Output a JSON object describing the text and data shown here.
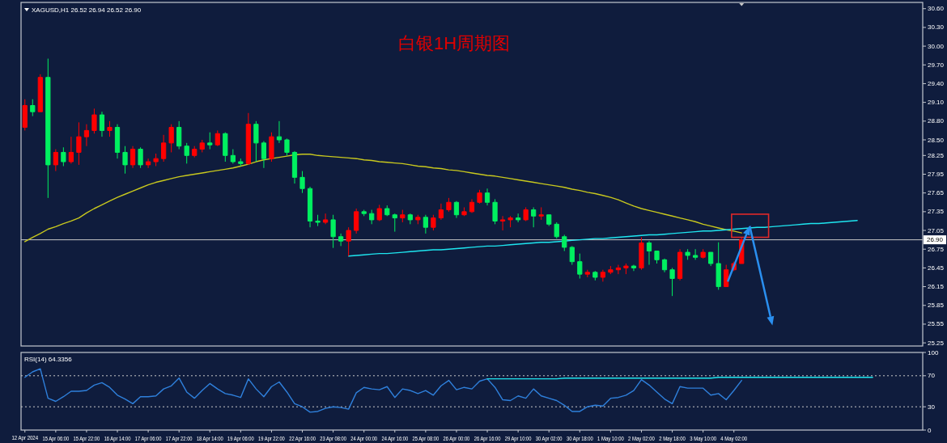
{
  "chart_data": [
    {
      "type": "candlestick",
      "title": "白银1H周期图",
      "annotations": [
        "XAGUSD,H1 26.52 26.94 26.52 26.90"
      ],
      "categories": [
        null,
        null,
        null,
        null,
        null,
        null,
        null,
        null,
        null,
        null,
        null,
        null,
        null,
        null,
        null,
        null,
        null,
        null,
        null,
        null,
        null,
        null,
        null,
        null,
        null,
        null,
        null,
        null,
        null,
        null,
        null,
        null,
        null,
        null,
        null,
        null,
        null,
        null,
        null,
        null,
        null,
        null,
        null,
        null,
        null,
        null,
        null,
        null,
        null,
        null,
        null,
        null,
        null,
        null,
        null,
        null,
        null,
        null,
        null,
        null,
        null,
        null,
        null,
        null,
        null,
        null,
        null,
        null,
        null,
        null,
        null,
        null,
        null,
        null,
        null,
        null,
        null,
        null,
        null,
        null,
        null,
        null,
        null,
        null,
        null,
        null,
        null,
        null,
        null,
        null,
        null,
        null,
        null,
        null,
        null,
        null,
        null,
        null,
        null,
        null,
        null,
        null,
        null,
        null,
        null,
        null,
        null,
        null,
        null,
        null,
        null,
        null,
        null,
        null,
        null,
        null,
        null
      ],
      "ylim": [
        25.2,
        30.7
      ],
      "yticks": [
        {
          "value": 30.6,
          "label": "30.60"
        },
        {
          "value": 30.3,
          "label": "30.30"
        },
        {
          "value": 30,
          "label": "30.00"
        },
        {
          "value": 29.7,
          "label": "29.70"
        },
        {
          "value": 29.4,
          "label": "29.40"
        },
        {
          "value": 29.1,
          "label": "29.10"
        },
        {
          "value": 28.8,
          "label": "28.80"
        },
        {
          "value": 28.5,
          "label": "28.50"
        },
        {
          "value": 28.25,
          "label": "28.25"
        },
        {
          "value": 27.95,
          "label": "27.95"
        },
        {
          "value": 27.65,
          "label": "27.65"
        },
        {
          "value": 27.35,
          "label": "27.35"
        },
        {
          "value": 27.05,
          "label": "27.05"
        },
        {
          "value": 26.75,
          "label": "26.75"
        },
        {
          "value": 26.45,
          "label": "26.45"
        },
        {
          "value": 26.15,
          "label": "26.15"
        },
        {
          "value": 25.85,
          "label": "25.85"
        },
        {
          "value": 25.55,
          "label": "25.55"
        },
        {
          "value": 25.25,
          "label": "25.25"
        }
      ],
      "tick_labels": "y",
      "ref_lines": [
        {
          "axis": "y",
          "value": 26.9,
          "label": "26.90",
          "color": "#c8c8c8"
        }
      ],
      "series": [
        {
          "ohlc": [
            [
              28.7,
              29.15,
              28.65,
              29.05
            ],
            [
              29.05,
              29.15,
              28.88,
              28.95
            ],
            [
              28.95,
              29.55,
              28.95,
              29.5
            ],
            [
              29.5,
              29.8,
              27.57,
              28.1
            ],
            [
              28.1,
              28.35,
              28.0,
              28.3
            ],
            [
              28.3,
              28.38,
              28.08,
              28.15
            ],
            [
              28.15,
              28.55,
              28.12,
              28.3
            ],
            [
              28.3,
              28.78,
              28.1,
              28.55
            ],
            [
              28.55,
              28.75,
              28.4,
              28.65
            ],
            [
              28.65,
              29.0,
              28.6,
              28.9
            ],
            [
              28.9,
              28.95,
              28.55,
              28.65
            ],
            [
              28.65,
              28.8,
              28.55,
              28.7
            ],
            [
              28.7,
              28.75,
              28.2,
              28.3
            ],
            [
              28.3,
              28.4,
              27.96,
              28.1
            ],
            [
              28.1,
              28.4,
              28.05,
              28.35
            ],
            [
              28.35,
              28.38,
              28.05,
              28.1
            ],
            [
              28.1,
              28.2,
              28.05,
              28.15
            ],
            [
              28.15,
              28.28,
              28.08,
              28.2
            ],
            [
              28.2,
              28.58,
              28.15,
              28.45
            ],
            [
              28.45,
              28.75,
              28.3,
              28.7
            ],
            [
              28.7,
              28.8,
              28.35,
              28.4
            ],
            [
              28.4,
              28.45,
              28.12,
              28.25
            ],
            [
              28.25,
              28.4,
              28.22,
              28.35
            ],
            [
              28.35,
              28.5,
              28.3,
              28.45
            ],
            [
              28.45,
              28.62,
              28.35,
              28.42
            ],
            [
              28.42,
              28.65,
              28.4,
              28.6
            ],
            [
              28.6,
              28.62,
              28.15,
              28.25
            ],
            [
              28.25,
              28.35,
              28.12,
              28.15
            ],
            [
              28.15,
              28.2,
              28.08,
              28.12
            ],
            [
              28.12,
              28.93,
              28.1,
              28.75
            ],
            [
              28.75,
              28.8,
              28.15,
              28.45
            ],
            [
              28.45,
              28.48,
              28.05,
              28.2
            ],
            [
              28.2,
              28.62,
              28.15,
              28.55
            ],
            [
              28.55,
              28.8,
              28.45,
              28.5
            ],
            [
              28.5,
              28.52,
              28.25,
              28.3
            ],
            [
              28.3,
              28.32,
              27.8,
              27.9
            ],
            [
              27.9,
              28.0,
              27.65,
              27.72
            ],
            [
              27.72,
              27.75,
              27.1,
              27.2
            ],
            [
              27.2,
              27.3,
              27.12,
              27.18
            ],
            [
              27.18,
              27.32,
              27.15,
              27.22
            ],
            [
              27.22,
              27.3,
              26.77,
              26.95
            ],
            [
              26.95,
              27.0,
              26.8,
              26.88
            ],
            [
              26.88,
              27.1,
              26.64,
              27.05
            ],
            [
              27.05,
              27.4,
              27.0,
              27.35
            ],
            [
              27.35,
              27.38,
              27.28,
              27.32
            ],
            [
              27.32,
              27.38,
              27.15,
              27.22
            ],
            [
              27.22,
              27.46,
              27.2,
              27.4
            ],
            [
              27.4,
              27.45,
              27.28,
              27.3
            ],
            [
              27.3,
              27.32,
              27.03,
              27.25
            ],
            [
              27.25,
              27.38,
              27.18,
              27.3
            ],
            [
              27.3,
              27.32,
              27.15,
              27.22
            ],
            [
              27.22,
              27.3,
              27.15,
              27.26
            ],
            [
              27.26,
              27.3,
              27.0,
              27.1
            ],
            [
              27.1,
              27.3,
              27.05,
              27.25
            ],
            [
              27.25,
              27.48,
              27.22,
              27.38
            ],
            [
              27.38,
              27.57,
              27.35,
              27.5
            ],
            [
              27.5,
              27.52,
              27.25,
              27.3
            ],
            [
              27.3,
              27.42,
              27.28,
              27.35
            ],
            [
              27.35,
              27.55,
              27.33,
              27.5
            ],
            [
              27.5,
              27.7,
              27.48,
              27.65
            ],
            [
              27.65,
              27.72,
              27.45,
              27.5
            ],
            [
              27.5,
              27.55,
              27.15,
              27.2
            ],
            [
              27.2,
              27.28,
              27.05,
              27.22
            ],
            [
              27.22,
              27.28,
              27.1,
              27.25
            ],
            [
              27.25,
              27.32,
              27.18,
              27.22
            ],
            [
              27.22,
              27.42,
              27.2,
              27.38
            ],
            [
              27.38,
              27.42,
              27.1,
              27.28
            ],
            [
              27.28,
              27.42,
              27.22,
              27.3
            ],
            [
              27.3,
              27.3,
              27.12,
              27.15
            ],
            [
              27.15,
              27.18,
              26.92,
              26.95
            ],
            [
              26.95,
              26.98,
              26.72,
              26.78
            ],
            [
              26.78,
              26.8,
              26.5,
              26.55
            ],
            [
              26.55,
              26.68,
              26.28,
              26.35
            ],
            [
              26.35,
              26.42,
              26.3,
              26.38
            ],
            [
              26.38,
              26.4,
              26.25,
              26.3
            ],
            [
              26.3,
              26.42,
              26.23,
              26.38
            ],
            [
              26.38,
              26.48,
              26.35,
              26.42
            ],
            [
              26.42,
              26.5,
              26.35,
              26.45
            ],
            [
              26.45,
              26.52,
              26.35,
              26.48
            ],
            [
              26.48,
              26.5,
              26.4,
              26.45
            ],
            [
              26.45,
              26.94,
              26.42,
              26.85
            ],
            [
              26.85,
              26.88,
              26.5,
              26.72
            ],
            [
              26.72,
              26.72,
              26.52,
              26.58
            ],
            [
              26.58,
              26.6,
              26.38,
              26.42
            ],
            [
              26.42,
              26.45,
              26.0,
              26.28
            ],
            [
              26.28,
              26.75,
              26.25,
              26.7
            ],
            [
              26.7,
              26.75,
              26.58,
              26.65
            ],
            [
              26.65,
              26.75,
              26.58,
              26.62
            ],
            [
              26.62,
              26.75,
              26.6,
              26.7
            ],
            [
              26.7,
              26.7,
              26.48,
              26.52
            ],
            [
              26.52,
              26.86,
              26.1,
              26.15
            ],
            [
              26.15,
              26.5,
              26.15,
              26.42
            ],
            [
              26.42,
              26.55,
              26.4,
              26.52
            ],
            [
              26.52,
              26.94,
              26.52,
              26.9
            ],
            null,
            null,
            null,
            null,
            null,
            null,
            null,
            null,
            null,
            null,
            null,
            null,
            null,
            null,
            null,
            null,
            null,
            null,
            null,
            null,
            null,
            null,
            null
          ],
          "colors": [
            "#ff0000",
            "#00f060",
            "#ff0000",
            "#00f060",
            "#ff0000",
            "#00f060",
            "#ff0000",
            "#ff0000",
            "#ff0000",
            "#ff0000",
            "#00f060",
            "#ff0000",
            "#00f060",
            "#00f060",
            "#ff0000",
            "#00f060",
            "#ff0000",
            "#ff0000",
            "#ff0000",
            "#ff0000",
            "#00f060",
            "#00f060",
            "#ff0000",
            "#ff0000",
            "#00f060",
            "#ff0000",
            "#00f060",
            "#00f060",
            "#00f060",
            "#ff0000",
            "#00f060",
            "#00f060",
            "#ff0000",
            "#00f060",
            "#00f060",
            "#00f060",
            "#00f060",
            "#00f060",
            "#00f060",
            "#ff0000",
            "#00f060",
            "#00f060",
            "#ff0000",
            "#ff0000",
            "#00f060",
            "#00f060",
            "#ff0000",
            "#00f060",
            "#00f060",
            "#ff0000",
            "#00f060",
            "#ff0000",
            "#00f060",
            "#ff0000",
            "#ff0000",
            "#ff0000",
            "#00f060",
            "#ff0000",
            "#ff0000",
            "#ff0000",
            "#00f060",
            "#00f060",
            "#ff0000",
            "#ff0000",
            "#00f060",
            "#ff0000",
            "#00f060",
            "#ff0000",
            "#00f060",
            "#00f060",
            "#00f060",
            "#00f060",
            "#00f060",
            "#ff0000",
            "#00f060",
            "#ff0000",
            "#ff0000",
            "#ff0000",
            "#ff0000",
            "#00f060",
            "#ff0000",
            "#00f060",
            "#00f060",
            "#00f060",
            "#00f060",
            "#ff0000",
            "#00f060",
            "#00f060",
            "#ff0000",
            "#00f060",
            "#00f060",
            "#ff0000",
            "#ff0000",
            "#ff0000",
            null,
            null,
            null,
            null,
            null,
            null,
            null,
            null,
            null,
            null,
            null,
            null,
            null,
            null,
            null,
            null,
            null,
            null,
            null,
            null,
            null,
            null,
            null
          ]
        },
        {
          "type": "line",
          "color": "#c8c81e",
          "values": [
            26.87,
            26.94,
            27.0,
            27.07,
            27.11,
            27.16,
            27.2,
            27.25,
            27.33,
            27.4,
            27.46,
            27.52,
            27.58,
            27.63,
            27.68,
            27.73,
            27.78,
            27.82,
            27.85,
            27.88,
            27.91,
            27.93,
            27.95,
            27.97,
            27.99,
            28.01,
            28.03,
            28.05,
            28.08,
            28.11,
            28.15,
            28.18,
            28.2,
            28.22,
            28.24,
            28.26,
            28.27,
            28.27,
            28.25,
            28.24,
            28.23,
            28.22,
            28.21,
            28.2,
            28.18,
            28.17,
            28.15,
            28.14,
            28.13,
            28.12,
            28.1,
            28.08,
            28.07,
            28.05,
            28.04,
            28.02,
            28.01,
            27.99,
            27.97,
            27.95,
            27.93,
            27.92,
            27.9,
            27.88,
            27.86,
            27.84,
            27.82,
            27.8,
            27.78,
            27.76,
            27.74,
            27.71,
            27.69,
            27.66,
            27.64,
            27.61,
            27.58,
            27.54,
            27.49,
            27.44,
            27.4,
            27.37,
            27.34,
            27.31,
            27.28,
            27.25,
            27.22,
            27.19,
            27.15,
            27.12,
            27.09,
            27.06,
            27.04,
            27.01,
            null,
            null,
            null,
            null,
            null,
            null,
            null,
            null,
            null,
            null,
            null,
            null,
            null,
            null,
            null,
            null,
            null,
            null,
            null,
            null,
            null,
            null,
            null
          ]
        },
        {
          "type": "line",
          "color": "#1ee6f0",
          "values": [
            null,
            null,
            null,
            null,
            null,
            null,
            null,
            null,
            null,
            null,
            null,
            null,
            null,
            null,
            null,
            null,
            null,
            null,
            null,
            null,
            null,
            null,
            null,
            null,
            null,
            null,
            null,
            null,
            null,
            null,
            null,
            null,
            null,
            null,
            null,
            null,
            null,
            null,
            null,
            null,
            null,
            null,
            26.64,
            26.65,
            26.66,
            26.67,
            26.68,
            26.68,
            26.69,
            26.7,
            26.71,
            26.72,
            26.73,
            26.74,
            26.74,
            26.75,
            26.76,
            26.77,
            26.78,
            26.79,
            26.8,
            26.8,
            26.81,
            26.82,
            26.83,
            26.84,
            26.85,
            26.86,
            26.86,
            26.87,
            26.88,
            26.89,
            26.9,
            26.91,
            26.92,
            26.92,
            26.93,
            26.94,
            26.95,
            26.96,
            26.97,
            26.98,
            26.98,
            26.99,
            27.0,
            27.01,
            27.02,
            27.03,
            27.04,
            27.04,
            27.05,
            27.06,
            27.07,
            27.08,
            27.09,
            27.1,
            27.1,
            27.11,
            27.12,
            27.13,
            27.14,
            27.15,
            27.16,
            27.16,
            27.17,
            27.18,
            27.19,
            27.2,
            27.21,
            null,
            null,
            null,
            null,
            null,
            null,
            null,
            null
          ]
        }
      ]
    },
    {
      "type": "line",
      "title": "RSI(14) 64.3356",
      "categories": [
        "12 Apr 2024",
        null,
        null,
        null,
        "15 Apr 06:00",
        null,
        null,
        null,
        "15 Apr 22:00",
        null,
        null,
        null,
        "16 Apr 14:00",
        null,
        null,
        null,
        "17 Apr 06:00",
        null,
        null,
        null,
        "17 Apr 22:00",
        null,
        null,
        null,
        "18 Apr 14:00",
        null,
        null,
        null,
        "19 Apr 06:00",
        null,
        null,
        null,
        "19 Apr 22:00",
        null,
        null,
        null,
        "22 Apr 16:00",
        null,
        null,
        null,
        "23 Apr 08:00",
        null,
        null,
        null,
        "24 Apr 00:00",
        null,
        null,
        null,
        "24 Apr 16:00",
        null,
        null,
        null,
        "25 Apr 08:00",
        null,
        null,
        null,
        "26 Apr 00:00",
        null,
        null,
        null,
        "26 Apr 16:00",
        null,
        null,
        null,
        "29 Apr 10:00",
        null,
        null,
        null,
        "30 Apr 02:00",
        null,
        null,
        null,
        "30 Apr 18:00",
        null,
        null,
        null,
        "1 May 10:00",
        null,
        null,
        null,
        "2 May 02:00",
        null,
        null,
        null,
        "2 May 18:00",
        null,
        null,
        null,
        "3 May 10:00",
        null,
        null,
        null,
        "4 May 02:00",
        null,
        null,
        null,
        null,
        null,
        null,
        null,
        null,
        null,
        null,
        null,
        null,
        null,
        null,
        null,
        null,
        null,
        null,
        null,
        null,
        null,
        null,
        null,
        null
      ],
      "ylim": [
        0,
        100
      ],
      "yticks": [
        100,
        70,
        30,
        0
      ],
      "ref_lines": [
        {
          "axis": "y",
          "value": 70,
          "color": "#c8c8c8",
          "line_style": "dotted"
        },
        {
          "axis": "y",
          "value": 30,
          "color": "#c8c8c8",
          "line_style": "dotted"
        }
      ],
      "series": [
        {
          "color": "#2f80dc",
          "values": [
            68,
            75,
            79,
            41,
            37,
            43,
            50,
            50,
            51,
            58,
            61,
            55,
            45,
            40,
            34,
            43,
            43,
            44,
            53,
            57,
            67,
            49,
            41,
            51,
            60,
            53,
            47,
            45,
            42,
            66,
            53,
            43,
            56,
            62,
            49,
            34,
            30,
            23,
            24,
            28,
            30,
            29,
            27,
            48,
            55,
            53,
            52,
            56,
            42,
            53,
            51,
            47,
            51,
            45,
            57,
            64,
            52,
            55,
            53,
            63,
            66,
            55,
            39,
            38,
            44,
            41,
            53,
            44,
            41,
            38,
            32,
            24,
            24,
            30,
            32,
            31,
            41,
            42,
            45,
            51,
            65,
            58,
            49,
            40,
            34,
            56,
            54,
            54,
            54,
            45,
            47,
            39,
            51,
            64,
            null,
            null,
            null,
            null,
            null,
            null,
            null,
            null,
            null,
            null,
            null,
            null,
            null,
            null,
            null,
            null,
            null,
            null,
            null,
            null,
            null,
            null,
            null
          ]
        },
        {
          "color": "#1ee6f0",
          "values": [
            null,
            null,
            null,
            null,
            null,
            null,
            null,
            null,
            null,
            null,
            null,
            null,
            null,
            null,
            null,
            null,
            null,
            null,
            null,
            null,
            null,
            null,
            null,
            null,
            null,
            null,
            null,
            null,
            null,
            null,
            null,
            null,
            null,
            null,
            null,
            null,
            null,
            null,
            null,
            null,
            null,
            null,
            null,
            null,
            null,
            null,
            null,
            null,
            null,
            null,
            null,
            null,
            null,
            null,
            null,
            null,
            null,
            null,
            null,
            null,
            66,
            66,
            66,
            66,
            66,
            66,
            66,
            66,
            66,
            66,
            67,
            67,
            67,
            67,
            67,
            67,
            67,
            67,
            67,
            67,
            67,
            67,
            67,
            67,
            67,
            67,
            67,
            67,
            67,
            67,
            68,
            68,
            68,
            68,
            68,
            68,
            68,
            68,
            68,
            68,
            68,
            68,
            68,
            68,
            68,
            68,
            68,
            68,
            68,
            68,
            68,
            null,
            null,
            null,
            null,
            null,
            null
          ]
        }
      ]
    }
  ]
}
